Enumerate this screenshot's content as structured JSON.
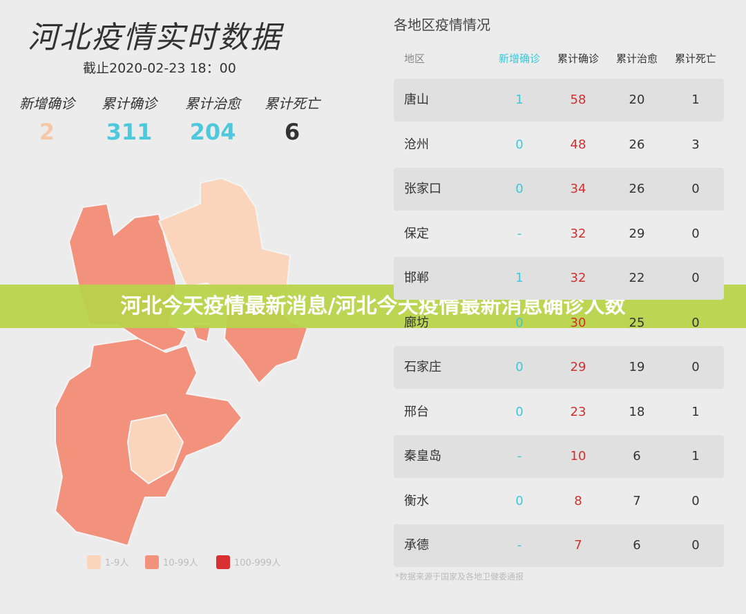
{
  "header": {
    "title": "河北疫情实时数据",
    "updated": "截止2020-02-23 18：00"
  },
  "summary": [
    {
      "label": "新增确诊",
      "value": 2
    },
    {
      "label": "累计确诊",
      "value": 311
    },
    {
      "label": "累计治愈",
      "value": 204
    },
    {
      "label": "累计死亡",
      "value": 6
    }
  ],
  "legend": [
    "1-9人",
    "10-99人",
    "100-999人"
  ],
  "table": {
    "title": "各地区疫情情况",
    "columns": [
      "地区",
      "新增确诊",
      "累计确诊",
      "累计治愈",
      "累计死亡"
    ],
    "rows": [
      [
        "唐山",
        1,
        58,
        20,
        1
      ],
      [
        "沧州",
        0,
        48,
        26,
        3
      ],
      [
        "张家口",
        0,
        34,
        26,
        0
      ],
      [
        "保定",
        "-",
        32,
        29,
        0
      ],
      [
        "邯郸",
        1,
        32,
        22,
        0
      ],
      [
        "廊坊",
        0,
        30,
        25,
        0
      ],
      [
        "石家庄",
        0,
        29,
        19,
        0
      ],
      [
        "邢台",
        0,
        23,
        18,
        1
      ],
      [
        "秦皇岛",
        "-",
        10,
        6,
        1
      ],
      [
        "衡水",
        0,
        8,
        7,
        0
      ],
      [
        "承德",
        "-",
        7,
        6,
        0
      ]
    ]
  },
  "banner": "河北今天疫情最新消息/河北今天疫情最新消息确诊人数",
  "footnote": "*数据来源于国家及各地卫健委通报"
}
